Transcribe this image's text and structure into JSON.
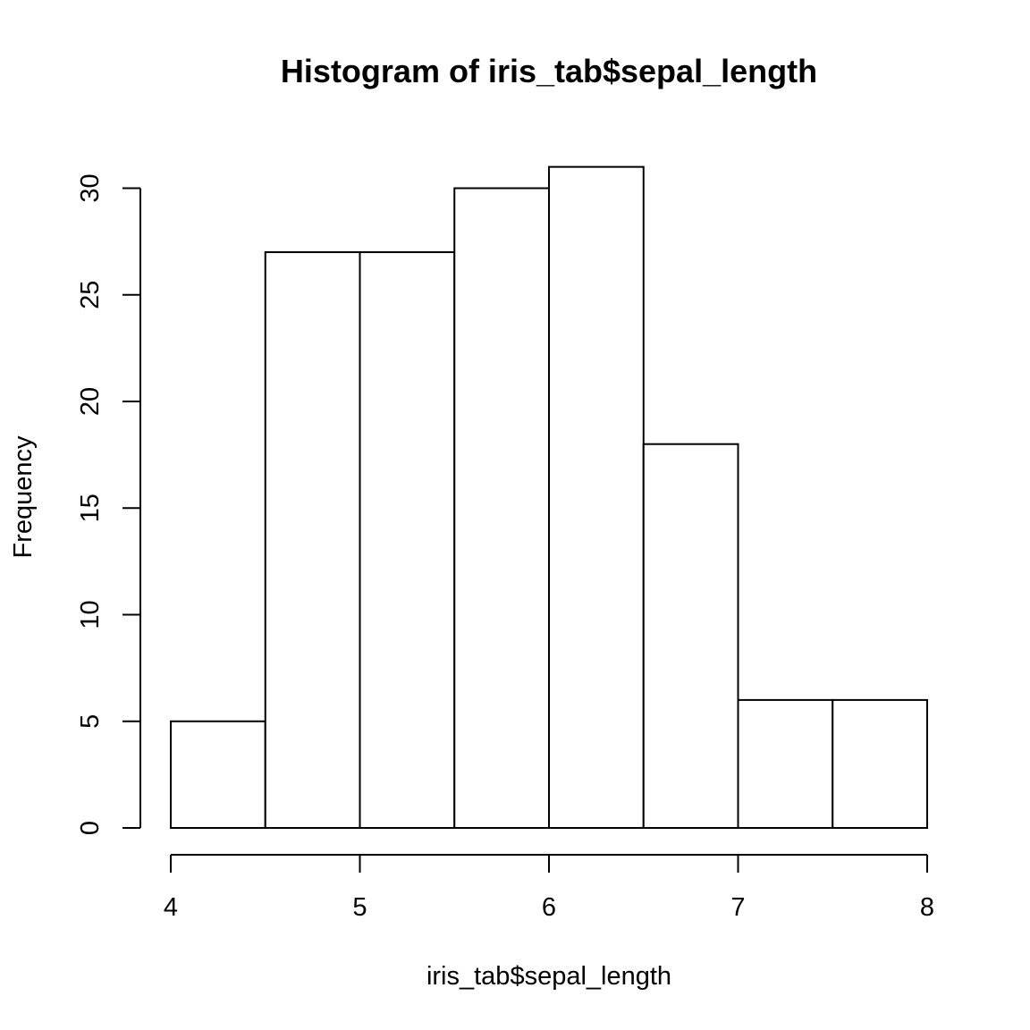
{
  "chart_data": {
    "type": "bar",
    "title": "Histogram of iris_tab$sepal_length",
    "xlabel": "iris_tab$sepal_length",
    "ylabel": "Frequency",
    "bins": [
      {
        "x0": 4.0,
        "x1": 4.5,
        "count": 5
      },
      {
        "x0": 4.5,
        "x1": 5.0,
        "count": 27
      },
      {
        "x0": 5.0,
        "x1": 5.5,
        "count": 27
      },
      {
        "x0": 5.5,
        "x1": 6.0,
        "count": 30
      },
      {
        "x0": 6.0,
        "x1": 6.5,
        "count": 31
      },
      {
        "x0": 6.5,
        "x1": 7.0,
        "count": 18
      },
      {
        "x0": 7.0,
        "x1": 7.5,
        "count": 6
      },
      {
        "x0": 7.5,
        "x1": 8.0,
        "count": 6
      }
    ],
    "xlim": [
      4,
      8
    ],
    "ylim": [
      0,
      31
    ],
    "xticks": [
      "4",
      "5",
      "6",
      "7",
      "8"
    ],
    "yticks": [
      "0",
      "5",
      "10",
      "15",
      "20",
      "25",
      "30"
    ],
    "grid": false,
    "bar_fill": "#ffffff",
    "bar_stroke": "#000000"
  }
}
